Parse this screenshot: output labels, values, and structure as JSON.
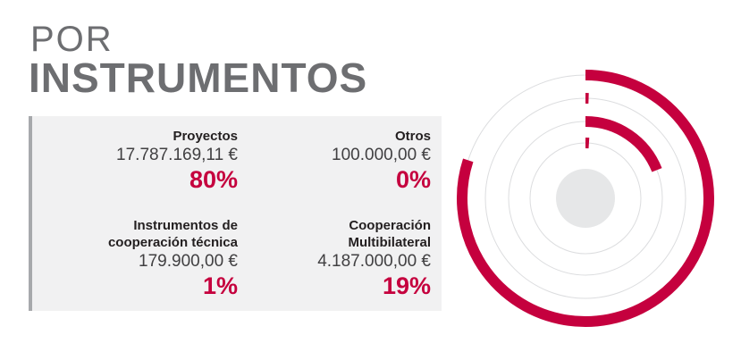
{
  "title": {
    "line1": "POR",
    "line2": "INSTRUMENTOS"
  },
  "chart_data": {
    "type": "radial_bar",
    "categories": [
      "Proyectos",
      "Otros",
      "Cooperación Multibilateral",
      "Instrumentos de cooperación técnica"
    ],
    "series": [
      {
        "name": "Proyectos",
        "amount": "17.787.169,11 €",
        "percent_label": "80%",
        "value": 80
      },
      {
        "name": "Otros",
        "amount": "100.000,00 €",
        "percent_label": "0%",
        "value": 0.5
      },
      {
        "name": "Cooperación Multibilateral",
        "amount": "4.187.000,00 €",
        "percent_label": "19%",
        "value": 19
      },
      {
        "name": "Instrumentos de cooperación técnica",
        "amount": "179.900,00 €",
        "percent_label": "1%",
        "value": 1
      }
    ],
    "accent_color": "#c5003e",
    "ring_color": "#dcdddf",
    "center_color": "#e6e7e8"
  },
  "cards": [
    {
      "name": "Proyectos",
      "amount": "17.787.169,11 €",
      "percent": "80%"
    },
    {
      "name": "Otros",
      "amount": "100.000,00 €",
      "percent": "0%"
    },
    {
      "name_line1": "Instrumentos de",
      "name_line2": "cooperación técnica",
      "amount": "179.900,00 €",
      "percent": "1%"
    },
    {
      "name_line1": "Cooperación",
      "name_line2": "Multibilateral",
      "amount": "4.187.000,00 €",
      "percent": "19%"
    }
  ]
}
